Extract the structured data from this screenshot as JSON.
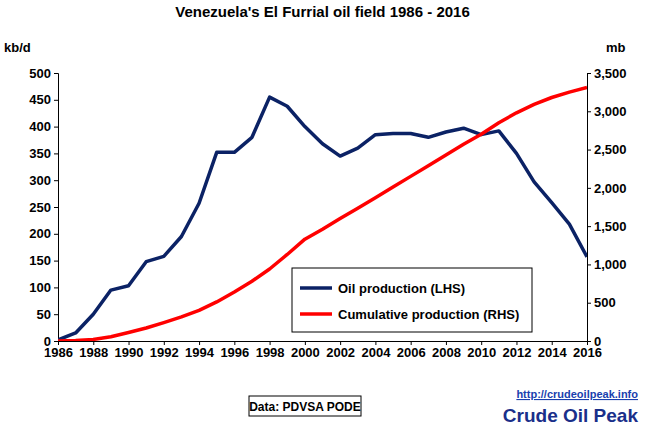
{
  "chart_data": {
    "type": "line",
    "title": "Venezuela's El Furrial oil field 1986 - 2016",
    "y_label": "kb/d",
    "y2_label": "mb",
    "source": "Data: PDVSA PODE",
    "url": "http://crudeoilpeak.info",
    "brand": "Crude Oil Peak",
    "legend": "right",
    "grid": false,
    "x": [
      1986,
      1987,
      1988,
      1989,
      1990,
      1991,
      1992,
      1993,
      1994,
      1995,
      1996,
      1997,
      1998,
      1999,
      2000,
      2001,
      2002,
      2003,
      2004,
      2005,
      2006,
      2007,
      2008,
      2009,
      2010,
      2011,
      2012,
      2013,
      2014,
      2015,
      2016
    ],
    "xlim": [
      1986,
      2016
    ],
    "xticks": [
      1986,
      1988,
      1990,
      1992,
      1994,
      1996,
      1998,
      2000,
      2002,
      2004,
      2006,
      2008,
      2010,
      2012,
      2014,
      2016
    ],
    "ylim": [
      0,
      500
    ],
    "yticks": [
      0,
      50,
      100,
      150,
      200,
      250,
      300,
      350,
      400,
      450,
      500
    ],
    "y2lim": [
      0,
      3500
    ],
    "y2ticks": [
      0,
      500,
      {
        "value": 1000,
        "label": "1,000"
      },
      {
        "value": 1500,
        "label": "1,500"
      },
      {
        "value": 2000,
        "label": "2,000"
      },
      {
        "value": 2500,
        "label": "2,500"
      },
      {
        "value": 3000,
        "label": "3,000"
      },
      {
        "value": 3500,
        "label": "3,500"
      }
    ],
    "series": [
      {
        "name": "Oil production (LHS)",
        "color": "#0b2265",
        "axis": "y",
        "values": [
          2,
          15,
          50,
          95,
          103,
          148,
          158,
          195,
          257,
          352,
          352,
          380,
          455,
          438,
          400,
          368,
          345,
          360,
          385,
          387,
          387,
          380,
          390,
          397,
          385,
          392,
          350,
          297,
          258,
          218,
          157
        ]
      },
      {
        "name": "Cumulative production (RHS)",
        "color": "#ff0000",
        "axis": "y2",
        "values": [
          0,
          5,
          20,
          55,
          110,
          170,
          240,
          315,
          400,
          510,
          640,
          780,
          940,
          1130,
          1330,
          1460,
          1600,
          1735,
          1870,
          2010,
          2150,
          2290,
          2430,
          2570,
          2700,
          2850,
          2980,
          3090,
          3180,
          3250,
          3310
        ]
      }
    ]
  }
}
